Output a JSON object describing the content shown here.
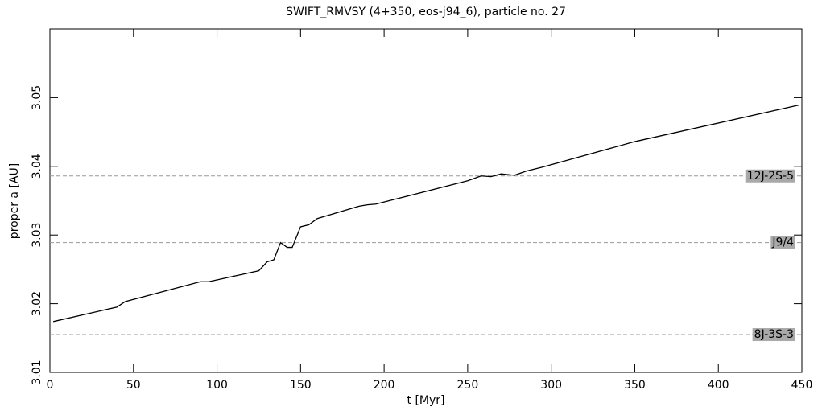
{
  "chart_data": {
    "type": "line",
    "title": "SWIFT_RMVSY (4+350, eos-j94_6), particle no. 27",
    "x_label": "t [Myr]",
    "y_label": "proper a [AU]",
    "xlim": [
      0,
      450
    ],
    "ylim": [
      3.01,
      3.06
    ],
    "xticks": [
      0,
      50,
      100,
      150,
      200,
      250,
      300,
      350,
      400,
      450
    ],
    "yticks": [
      3.01,
      3.02,
      3.03,
      3.04,
      3.05
    ],
    "series": [
      {
        "name": null,
        "color": "#000000",
        "x": [
          2,
          40,
          45,
          90,
          95,
          125,
          130,
          134,
          138,
          142,
          145,
          150,
          155,
          160,
          185,
          190,
          195,
          250,
          258,
          264,
          270,
          278,
          285,
          295,
          350,
          448
        ],
        "values": [
          3.0174,
          3.0195,
          3.0203,
          3.0232,
          3.0232,
          3.0248,
          3.0261,
          3.0264,
          3.0289,
          3.0282,
          3.0282,
          3.0312,
          3.0315,
          3.0324,
          3.0342,
          3.0344,
          3.0345,
          3.0379,
          3.0386,
          3.0385,
          3.0389,
          3.0387,
          3.0393,
          3.0399,
          3.0436,
          3.0489
        ]
      }
    ],
    "resonances": [
      {
        "label": "12J-2S-5",
        "value": 3.0386
      },
      {
        "label": "J9/4",
        "value": 3.0289
      },
      {
        "label": "8J-3S-3",
        "value": 3.0155
      }
    ]
  }
}
